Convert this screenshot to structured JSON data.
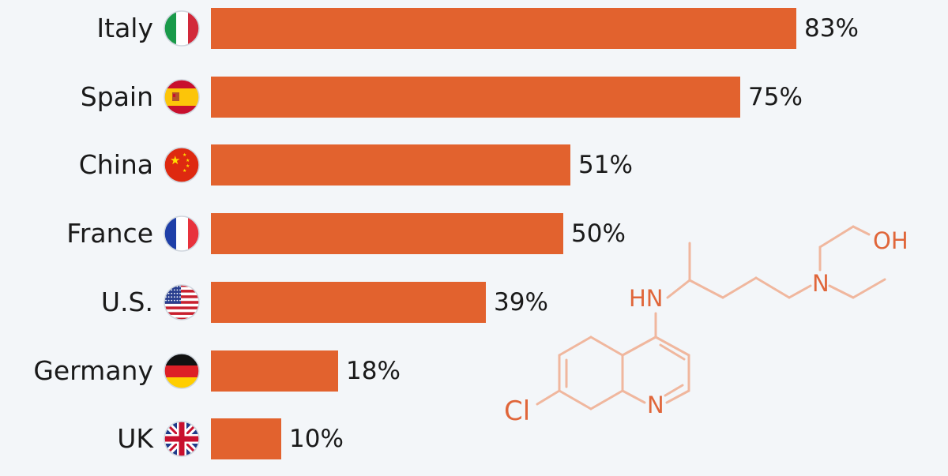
{
  "chart_data": {
    "type": "bar",
    "orientation": "horizontal",
    "categories": [
      "Italy",
      "Spain",
      "China",
      "France",
      "U.S.",
      "Germany",
      "UK"
    ],
    "values": [
      83,
      75,
      51,
      50,
      39,
      18,
      10
    ],
    "value_labels": [
      "83%",
      "75%",
      "51%",
      "50%",
      "39%",
      "18%",
      "10%"
    ],
    "flag_icons": [
      "italy-flag-icon",
      "spain-flag-icon",
      "china-flag-icon",
      "france-flag-icon",
      "us-flag-icon",
      "germany-flag-icon",
      "uk-flag-icon"
    ],
    "xlim": [
      0,
      100
    ],
    "bar_color": "#e2622e",
    "grid": false,
    "legend": "none"
  },
  "molecule_labels": {
    "hn": "HN",
    "oh": "OH",
    "n_amine": "N",
    "n_ring": "N",
    "cl": "Cl"
  },
  "colors": {
    "background": "#f3f6f9",
    "bar": "#e2622e",
    "molecule_line": "#f0b79e",
    "molecule_text": "#e0663a"
  }
}
